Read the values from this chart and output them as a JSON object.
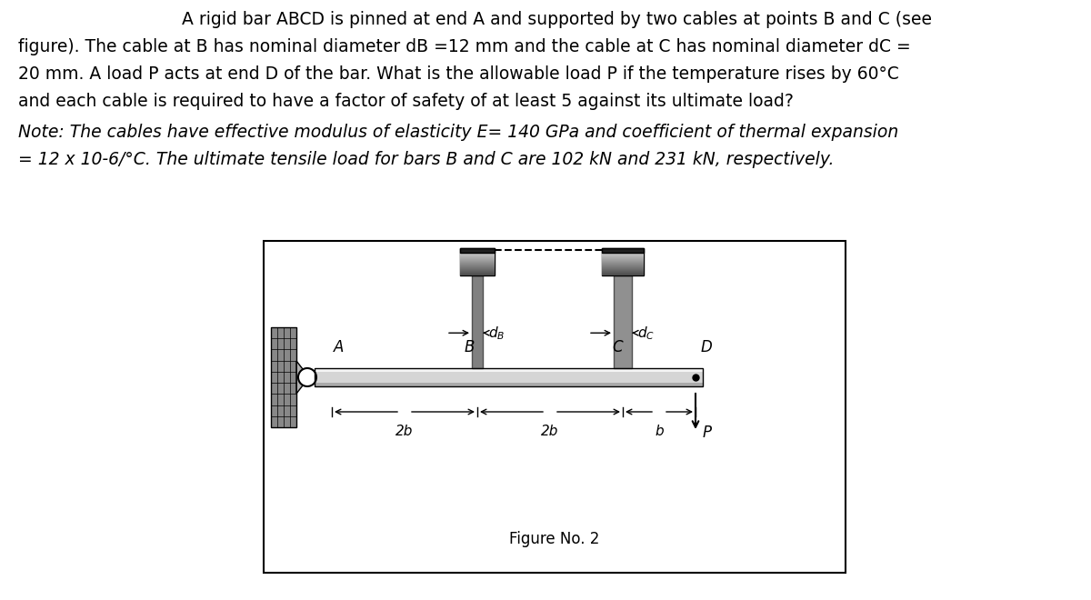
{
  "line1": "    A rigid bar ABCD is pinned at end A and supported by two cables at points B and C (see",
  "line2": "figure). The cable at B has nominal diameter dB =12 mm and the cable at C has nominal diameter dC =",
  "line3": "20 mm. A load P acts at end D of the bar. What is the allowable load P if the temperature rises by 60°C",
  "line4": "and each cable is required to have a factor of safety of at least 5 against its ultimate load?",
  "note1": "Note: The cables have effective modulus of elasticity E= 140 GPa and coefficient of thermal expansion",
  "note2": "= 12 x 10-6/°C. The ultimate tensile load for bars B and C are 102 kN and 231 kN, respectively.",
  "figure_label": "Figure No. 2",
  "bg_color": "#ffffff"
}
